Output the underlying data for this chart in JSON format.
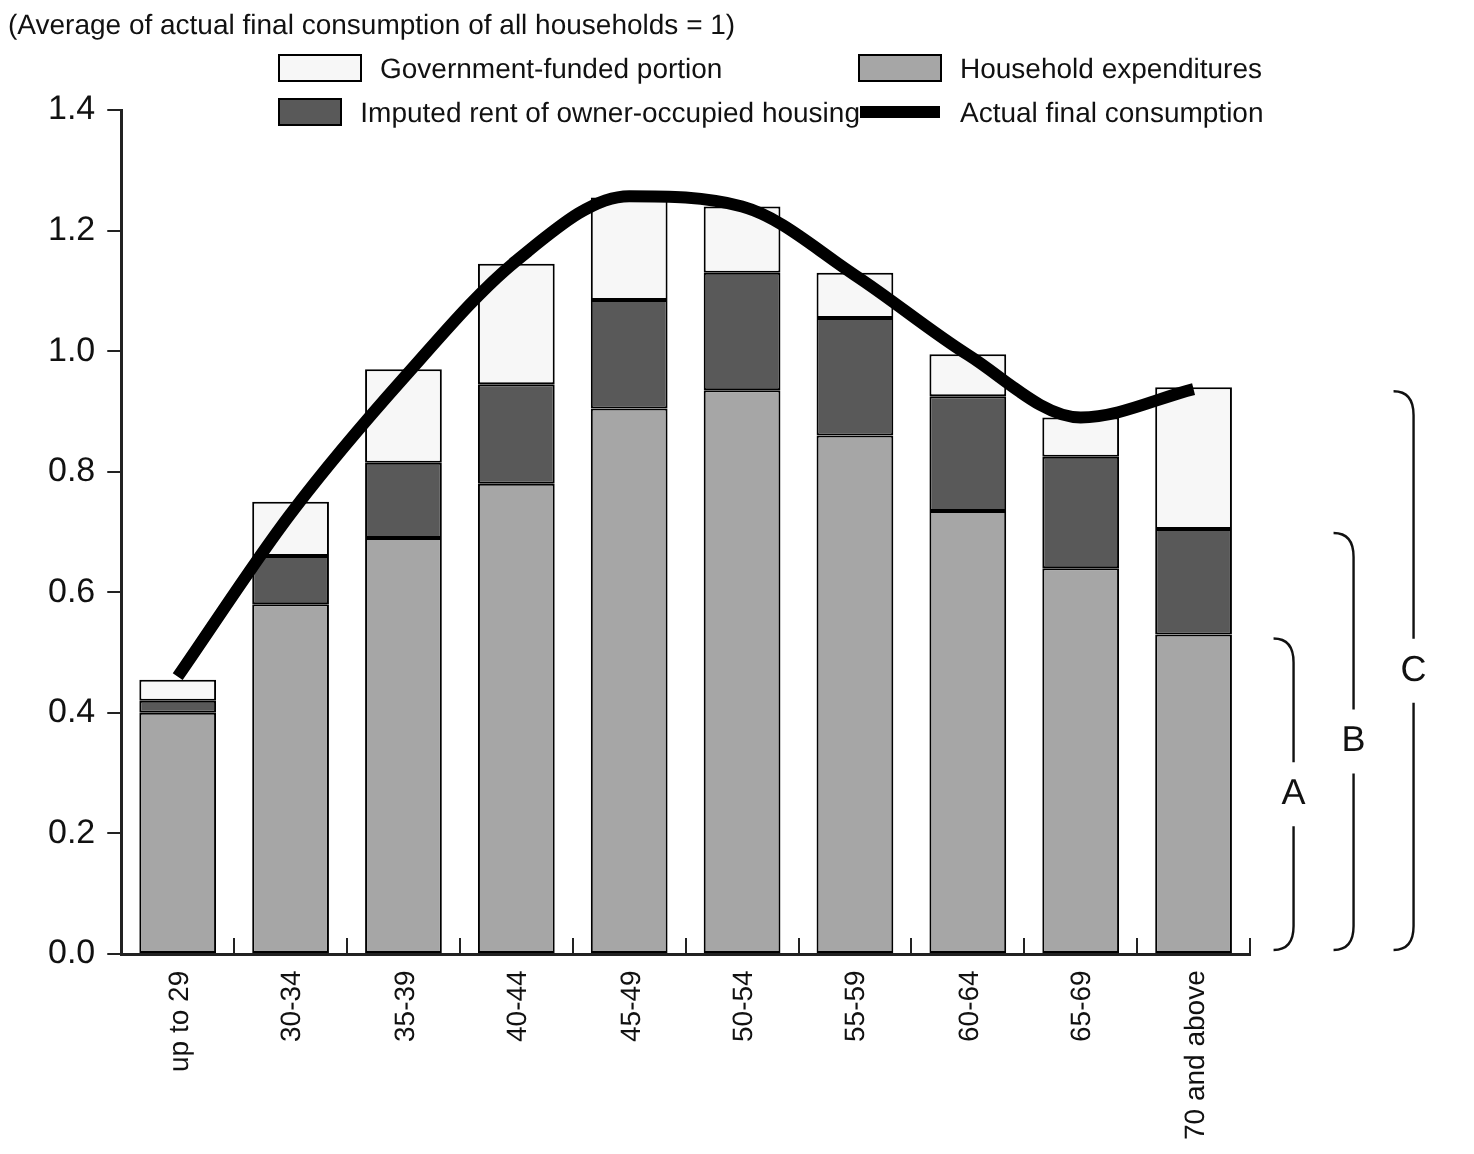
{
  "chart_data": {
    "type": "bar",
    "stacked": true,
    "ylabel": "(Average of actual final consumption of all households = 1)",
    "categories": [
      "up to 29",
      "30-34",
      "35-39",
      "40-44",
      "45-49",
      "50-54",
      "55-59",
      "60-64",
      "65-69",
      "70 and above"
    ],
    "series": [
      {
        "name": "Household expenditures",
        "color": "#a6a6a6",
        "values": [
          0.4,
          0.58,
          0.69,
          0.78,
          0.905,
          0.935,
          0.86,
          0.735,
          0.64,
          0.53
        ]
      },
      {
        "name": "Imputed rent of owner-occupied housing",
        "color": "#595959",
        "values": [
          0.02,
          0.08,
          0.125,
          0.165,
          0.18,
          0.195,
          0.195,
          0.19,
          0.185,
          0.175
        ]
      },
      {
        "name": "Government-funded portion",
        "color": "#f7f7f7",
        "values": [
          0.035,
          0.09,
          0.155,
          0.2,
          0.17,
          0.11,
          0.075,
          0.07,
          0.065,
          0.235
        ]
      },
      {
        "name": "Actual final consumption",
        "type": "line",
        "color": "#000000",
        "values": [
          0.46,
          0.73,
          0.955,
          1.15,
          1.257,
          1.24,
          1.126,
          0.994,
          0.89,
          0.937
        ]
      }
    ],
    "ylim": [
      0,
      1.4
    ],
    "yticks": [
      {
        "value": 0,
        "label": "0.0"
      },
      {
        "value": 0.2,
        "label": "0.2"
      },
      {
        "value": 0.4,
        "label": "0.4"
      },
      {
        "value": 0.6,
        "label": "0.6"
      },
      {
        "value": 0.8,
        "label": "0.8"
      },
      {
        "value": 1,
        "label": "1.0"
      },
      {
        "value": 1.2,
        "label": "1.2"
      },
      {
        "value": 1.4,
        "label": "1.4"
      }
    ],
    "grid": false,
    "legend": "top",
    "marker": "none",
    "annotations": [
      "A",
      "B",
      "C"
    ]
  }
}
